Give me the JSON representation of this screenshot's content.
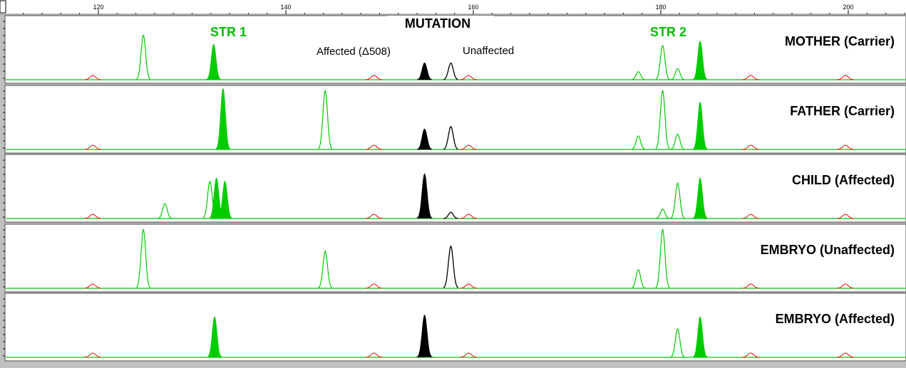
{
  "chart_data": {
    "type": "line",
    "x_ticks": [
      120,
      140,
      160,
      180,
      200
    ],
    "xlim": [
      107,
      206
    ],
    "colors": {
      "str": "#00cc00",
      "mutation": "#000000",
      "size_standard": "#ff0000",
      "baseline": "#00cc00"
    },
    "annotations": {
      "str1": "STR 1",
      "str2": "STR 2",
      "mutation": "MUTATION",
      "affected_allele": "Affected (Δ508)",
      "unaffected_allele": "Unaffected"
    },
    "size_standard_peaks": [
      119.4,
      149.4,
      159.5,
      189.6,
      199.7
    ],
    "panels": [
      {
        "name": "MOTHER (Carrier)",
        "filled_str": [
          {
            "x": 132.3,
            "h": 0.57
          },
          {
            "x": 184.2,
            "h": 0.62
          },
          {
            "x": 181.8,
            "h": 0.18,
            "outline": true
          }
        ],
        "outline_str": [
          {
            "x": 104.2,
            "h": 0.1,
            "w": 3
          },
          {
            "x": 124.8,
            "h": 0.72
          },
          {
            "x": 177.6,
            "h": 0.13
          },
          {
            "x": 180.2,
            "h": 0.55
          }
        ],
        "mutation": [
          {
            "x": 154.8,
            "h": 0.27,
            "filled": true
          },
          {
            "x": 157.6,
            "h": 0.27,
            "filled": false
          }
        ]
      },
      {
        "name": "FATHER (Carrier)",
        "filled_str": [
          {
            "x": 133.3,
            "h": 0.98
          },
          {
            "x": 184.2,
            "h": 0.76
          }
        ],
        "outline_str": [
          {
            "x": 104.2,
            "h": 0.05,
            "w": 3
          },
          {
            "x": 144.2,
            "h": 0.95
          },
          {
            "x": 177.6,
            "h": 0.22
          },
          {
            "x": 180.2,
            "h": 0.95
          },
          {
            "x": 181.8,
            "h": 0.25
          }
        ],
        "mutation": [
          {
            "x": 154.8,
            "h": 0.33,
            "filled": true
          },
          {
            "x": 157.6,
            "h": 0.37,
            "filled": false
          }
        ]
      },
      {
        "name": "CHILD (Affected)",
        "filled_str": [
          {
            "x": 132.6,
            "h": 0.65
          },
          {
            "x": 133.5,
            "h": 0.6
          },
          {
            "x": 184.2,
            "h": 0.65
          }
        ],
        "outline_str": [
          {
            "x": 127.1,
            "h": 0.24
          },
          {
            "x": 131.9,
            "h": 0.6
          },
          {
            "x": 180.2,
            "h": 0.15
          },
          {
            "x": 181.8,
            "h": 0.57
          }
        ],
        "mutation": [
          {
            "x": 154.8,
            "h": 0.72,
            "filled": true
          },
          {
            "x": 157.6,
            "h": 0.1,
            "filled": false
          }
        ]
      },
      {
        "name": "EMBRYO (Unaffected)",
        "filled_str": [],
        "outline_str": [
          {
            "x": 124.8,
            "h": 0.95
          },
          {
            "x": 144.2,
            "h": 0.6
          },
          {
            "x": 177.6,
            "h": 0.3
          },
          {
            "x": 180.2,
            "h": 0.95
          }
        ],
        "mutation": [
          {
            "x": 157.6,
            "h": 0.68,
            "filled": false
          }
        ]
      },
      {
        "name": "EMBRYO (Affected)",
        "filled_str": [
          {
            "x": 132.4,
            "h": 0.65
          },
          {
            "x": 184.2,
            "h": 0.65
          }
        ],
        "outline_str": [
          {
            "x": 181.8,
            "h": 0.46
          }
        ],
        "mutation": [
          {
            "x": 154.8,
            "h": 0.68,
            "filled": true
          }
        ]
      }
    ]
  }
}
